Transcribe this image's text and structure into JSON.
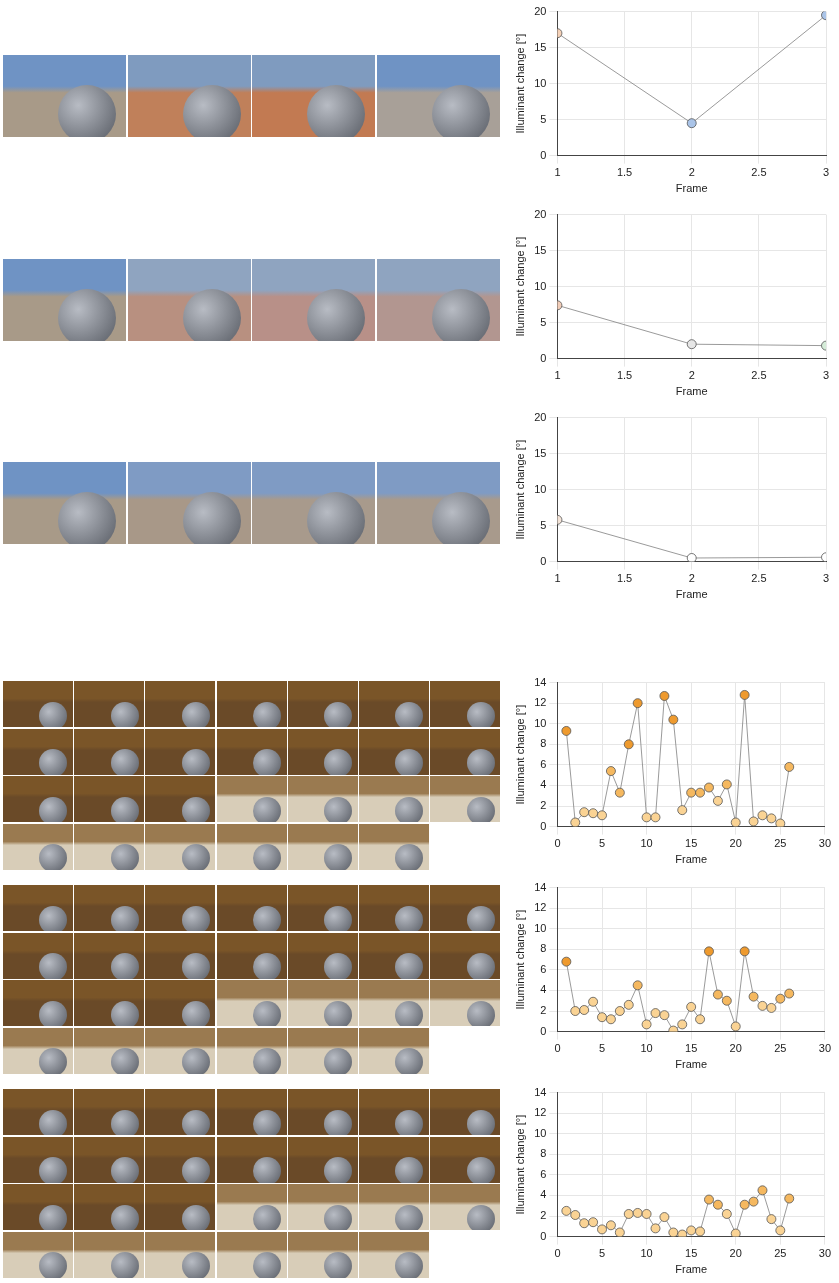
{
  "chart_data": [
    {
      "type": "line",
      "x_label": "Frame",
      "y_label": "Illuminant change [°]",
      "x": [
        1,
        2,
        3
      ],
      "values": [
        17.0,
        4.5,
        19.5
      ],
      "colors": [
        "#f6d2b8",
        "#aac4e8",
        "#aac4e8"
      ],
      "color": "#808080",
      "marker": "circle",
      "xlim": [
        1,
        3
      ],
      "xticks": [
        1,
        1.5,
        2,
        2.5,
        3
      ],
      "ylim": [
        0,
        20
      ],
      "yticks": [
        0,
        5,
        10,
        15,
        20
      ],
      "grid": true
    },
    {
      "type": "line",
      "x_label": "Frame",
      "y_label": "Illuminant change [°]",
      "x": [
        1,
        2,
        3
      ],
      "values": [
        7.4,
        2.0,
        1.8
      ],
      "colors": [
        "#f2cdb8",
        "#e6e6e6",
        "#d5ecd8"
      ],
      "color": "#808080",
      "marker": "circle",
      "xlim": [
        1,
        3
      ],
      "xticks": [
        1,
        1.5,
        2,
        2.5,
        3
      ],
      "ylim": [
        0,
        20
      ],
      "yticks": [
        0,
        5,
        10,
        15,
        20
      ],
      "grid": true
    },
    {
      "type": "line",
      "x_label": "Frame",
      "y_label": "Illuminant change [°]",
      "x": [
        1,
        2,
        3
      ],
      "values": [
        5.8,
        0.5,
        0.6
      ],
      "colors": [
        "#f4e4d8",
        "#ffffff",
        "#ffffff"
      ],
      "color": "#808080",
      "marker": "circle",
      "xlim": [
        1,
        3
      ],
      "xticks": [
        1,
        1.5,
        2,
        2.5,
        3
      ],
      "ylim": [
        0,
        20
      ],
      "yticks": [
        0,
        5,
        10,
        15,
        20
      ],
      "grid": true
    },
    {
      "type": "line",
      "x_label": "Frame",
      "y_label": "Illuminant change [°]",
      "x": [
        1,
        2,
        3,
        4,
        5,
        6,
        7,
        8,
        9,
        10,
        11,
        12,
        13,
        14,
        15,
        16,
        17,
        18,
        19,
        20,
        21,
        22,
        23,
        24,
        25,
        26
      ],
      "values": [
        9.3,
        0.4,
        1.4,
        1.3,
        1.1,
        5.4,
        3.3,
        8.0,
        12.0,
        0.9,
        0.9,
        12.7,
        10.4,
        1.6,
        3.3,
        3.3,
        3.8,
        2.5,
        4.1,
        0.4,
        12.8,
        0.5,
        1.1,
        0.8,
        0.3,
        5.8
      ],
      "colors": [
        "#ee9a2e",
        "#fad394",
        "#fad394",
        "#fad394",
        "#fad394",
        "#f5b85f",
        "#f5b85f",
        "#ee9a2e",
        "#ee9a2e",
        "#fad394",
        "#fad394",
        "#ee9a2e",
        "#ee9a2e",
        "#fad394",
        "#f5b85f",
        "#f5b85f",
        "#f5b85f",
        "#fad394",
        "#f5b85f",
        "#fad394",
        "#ee9a2e",
        "#fad394",
        "#fad394",
        "#fad394",
        "#fad394",
        "#f5b85f"
      ],
      "color": "#808080",
      "marker": "circle",
      "xlim": [
        0,
        30
      ],
      "xticks": [
        0,
        5,
        10,
        15,
        20,
        25,
        30
      ],
      "ylim": [
        0,
        14
      ],
      "yticks": [
        0,
        2,
        4,
        6,
        8,
        10,
        12,
        14
      ],
      "grid": true
    },
    {
      "type": "line",
      "x_label": "Frame",
      "y_label": "Illuminant change [°]",
      "x": [
        1,
        2,
        3,
        4,
        5,
        6,
        7,
        8,
        9,
        10,
        11,
        12,
        13,
        14,
        15,
        16,
        17,
        18,
        19,
        20,
        21,
        22,
        23,
        24,
        25,
        26
      ],
      "values": [
        6.8,
        2.0,
        2.1,
        2.9,
        1.4,
        1.2,
        2.0,
        2.6,
        4.5,
        0.7,
        1.8,
        1.6,
        0.1,
        0.7,
        2.4,
        1.2,
        7.8,
        3.6,
        3.0,
        0.5,
        7.8,
        3.4,
        2.5,
        2.3,
        3.2,
        3.7
      ],
      "colors": [
        "#ee9a2e",
        "#fad394",
        "#fad394",
        "#fad394",
        "#fad394",
        "#fad394",
        "#fad394",
        "#fad394",
        "#f5b85f",
        "#fad394",
        "#fad394",
        "#fad394",
        "#fad394",
        "#fad394",
        "#fad394",
        "#fad394",
        "#ee9a2e",
        "#f5b85f",
        "#f5b85f",
        "#fad394",
        "#ee9a2e",
        "#f5b85f",
        "#fad394",
        "#fad394",
        "#f5b85f",
        "#f5b85f"
      ],
      "color": "#808080",
      "marker": "circle",
      "xlim": [
        0,
        30
      ],
      "xticks": [
        0,
        5,
        10,
        15,
        20,
        25,
        30
      ],
      "ylim": [
        0,
        14
      ],
      "yticks": [
        0,
        2,
        4,
        6,
        8,
        10,
        12,
        14
      ],
      "grid": true
    },
    {
      "type": "line",
      "x_label": "Frame",
      "y_label": "Illuminant change [°]",
      "x": [
        1,
        2,
        3,
        4,
        5,
        6,
        7,
        8,
        9,
        10,
        11,
        12,
        13,
        14,
        15,
        16,
        17,
        18,
        19,
        20,
        21,
        22,
        23,
        24,
        25,
        26
      ],
      "values": [
        2.5,
        2.1,
        1.3,
        1.4,
        0.7,
        1.1,
        0.4,
        2.2,
        2.3,
        2.2,
        0.8,
        1.9,
        0.4,
        0.2,
        0.6,
        0.5,
        3.6,
        3.1,
        2.2,
        0.3,
        3.1,
        3.4,
        4.5,
        1.7,
        0.6,
        3.7
      ],
      "colors": [
        "#fad394",
        "#fad394",
        "#fad394",
        "#fad394",
        "#fad394",
        "#fad394",
        "#fad394",
        "#fad394",
        "#fad394",
        "#fad394",
        "#fad394",
        "#fad394",
        "#fad394",
        "#fad394",
        "#fad394",
        "#fad394",
        "#f5b85f",
        "#f5b85f",
        "#fad394",
        "#fad394",
        "#f5b85f",
        "#f5b85f",
        "#f5b85f",
        "#fad394",
        "#fad394",
        "#f5b85f"
      ],
      "color": "#808080",
      "marker": "circle",
      "xlim": [
        0,
        30
      ],
      "xticks": [
        0,
        5,
        10,
        15,
        20,
        25,
        30
      ],
      "ylim": [
        0,
        14
      ],
      "yticks": [
        0,
        2,
        4,
        6,
        8,
        10,
        12,
        14
      ],
      "grid": true
    }
  ]
}
